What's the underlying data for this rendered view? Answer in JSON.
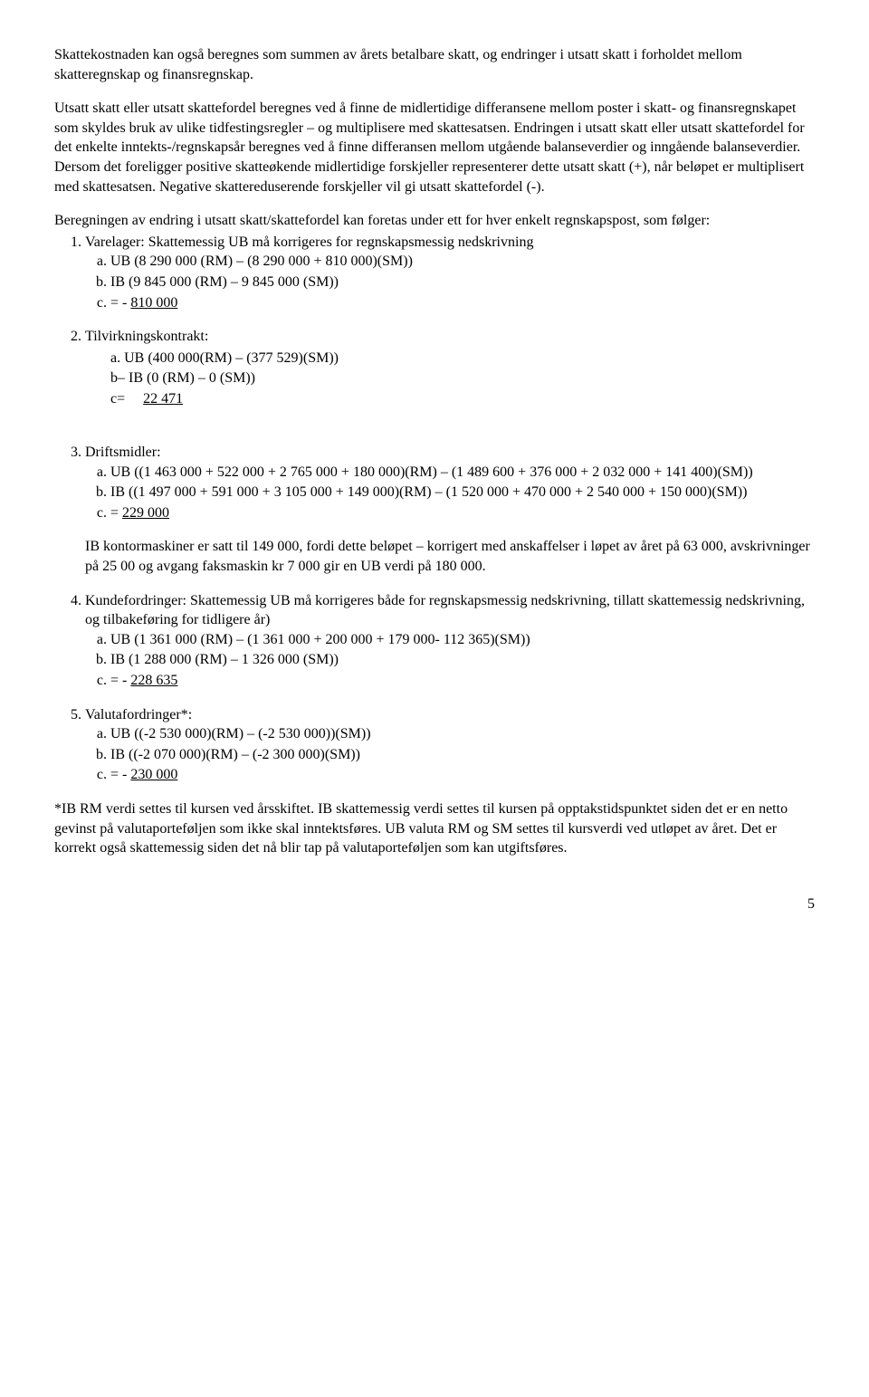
{
  "para1": "Skattekostnaden kan også beregnes som summen av årets betalbare skatt, og endringer i utsatt skatt i forholdet mellom skatteregnskap og finansregnskap.",
  "para2": "Utsatt skatt eller utsatt skattefordel beregnes ved å finne de midlertidige differansene mellom poster i skatt- og finansregnskapet som skyldes bruk av ulike tidfestingsregler – og multiplisere med skattesatsen. Endringen i utsatt skatt eller utsatt skattefordel for det enkelte inntekts-/regnskapsår beregnes ved å finne differansen mellom utgående balanseverdier og inngående balanseverdier. Dersom det foreligger positive skatteøkende midlertidige forskjeller representerer dette utsatt skatt (+), når beløpet er multiplisert med skattesatsen. Negative skattereduserende forskjeller vil gi utsatt skattefordel (-).",
  "para3": "Beregningen av endring i utsatt skatt/skattefordel kan foretas under ett for hver enkelt regnskapspost, som følger:",
  "item1": {
    "title": "Varelager: Skattemessig UB må korrigeres for regnskapsmessig nedskrivning",
    "a": "UB (8 290 000 (RM) – (8 290 000 + 810 000)(SM))",
    "b": "IB (9 845 000 (RM) – 9 845 000 (SM))",
    "c_pre": "= - ",
    "c_u": "810 000"
  },
  "item2": {
    "title": "Tilvirkningskontrakt:",
    "a": "a. UB (400 000(RM) – (377 529)(SM))",
    "b": "b– IB (0 (RM) – 0 (SM))",
    "c_pre": "c=     ",
    "c_u": "22 471"
  },
  "item3": {
    "title": "Driftsmidler:",
    "a": "UB ((1 463 000 + 522 000 + 2 765 000 + 180 000)(RM) – (1 489 600 + 376 000 + 2 032 000 + 141 400)(SM))",
    "b": "IB ((1 497 000 + 591 000 + 3 105 000 + 149 000)(RM) – (1 520 000 + 470 000 + 2 540 000 + 150 000)(SM))",
    "c_pre": "= ",
    "c_u": "229 000"
  },
  "para_ib": "IB kontormaskiner er satt til 149 000, fordi dette beløpet – korrigert med anskaffelser i løpet av året på 63 000, avskrivninger på 25 00 og avgang faksmaskin kr 7 000 gir en UB verdi på 180 000.",
  "item4": {
    "title": "Kundefordringer: Skattemessig UB må korrigeres både for regnskapsmessig nedskrivning, tillatt skattemessig nedskrivning, og tilbakeføring for tidligere år)",
    "a": "UB (1 361 000 (RM) – (1 361 000 + 200 000 + 179 000- 112 365)(SM))",
    "b": "IB (1 288 000 (RM) – 1 326 000 (SM))",
    "c_pre": "= - ",
    "c_u": "228 635"
  },
  "item5": {
    "title": "Valutafordringer*:",
    "a": "UB ((-2 530 000)(RM) – (-2 530 000))(SM))",
    "b": "IB ((-2 070 000)(RM) – (-2 300 000)(SM))",
    "c_pre": "= - ",
    "c_u": "230 000"
  },
  "para_footnote": "*IB RM verdi settes til kursen ved årsskiftet. IB skattemessig verdi settes til kursen på opptakstidspunktet siden det er en netto gevinst på valutaporteføljen som ikke skal inntektsføres. UB valuta RM og SM settes til kursverdi ved utløpet av året. Det er korrekt også skattemessig siden det nå blir tap på valutaporteføljen som kan utgiftsføres.",
  "page_number": "5"
}
